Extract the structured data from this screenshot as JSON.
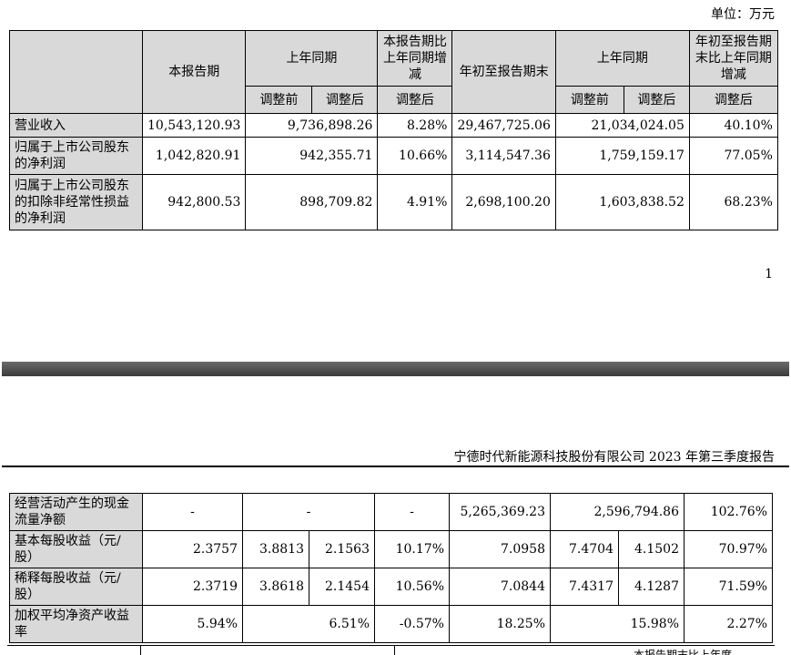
{
  "unit_label": "单位：万元",
  "page_number": "1",
  "report_title": "宁德时代新能源科技股份有限公司 2023 年第三季度报告",
  "headers": {
    "current": "本报告期",
    "prior_period": "上年同期",
    "change_vs_prior": "本报告期比上年同期增减",
    "ytd": "年初至报告期末",
    "prior_ytd": "上年同期",
    "ytd_change": "年初至报告期末比上年同期增减",
    "before_adj": "调整前",
    "after_adj": "调整后"
  },
  "rows_top": [
    {
      "label": "营业收入",
      "current": "10,543,120.93",
      "prior_merged": "9,736,898.26",
      "change": "8.28%",
      "ytd": "29,467,725.06",
      "prior_ytd_merged": "21,034,024.05",
      "ytd_change": "40.10%"
    },
    {
      "label": "归属于上市公司股东的净利润",
      "current": "1,042,820.91",
      "prior_merged": "942,355.71",
      "change": "10.66%",
      "ytd": "3,114,547.36",
      "prior_ytd_merged": "1,759,159.17",
      "ytd_change": "77.05%"
    },
    {
      "label": "归属于上市公司股东的扣除非经常性损益的净利润",
      "current": "942,800.53",
      "prior_merged": "898,709.82",
      "change": "4.91%",
      "ytd": "2,698,100.20",
      "prior_ytd_merged": "1,603,838.52",
      "ytd_change": "68.23%"
    }
  ],
  "rows_bottom": {
    "cashflow": {
      "label": "经营活动产生的现金流量净额",
      "current": "-",
      "prior_merged": "-",
      "change": "-",
      "ytd": "5,265,369.23",
      "prior_ytd_merged": "2,596,794.86",
      "ytd_change": "102.76%"
    },
    "basic_eps": {
      "label": "基本每股收益（元/股）",
      "current": "2.3757",
      "prior_before": "3.8813",
      "prior_after": "2.1563",
      "change": "10.17%",
      "ytd": "7.0958",
      "prior_ytd_before": "7.4704",
      "prior_ytd_after": "4.1502",
      "ytd_change": "70.97%"
    },
    "diluted_eps": {
      "label": "稀释每股收益（元/股）",
      "current": "2.3719",
      "prior_before": "3.8618",
      "prior_after": "2.1454",
      "change": "10.56%",
      "ytd": "7.0844",
      "prior_ytd_before": "7.4317",
      "prior_ytd_after": "4.1287",
      "ytd_change": "71.59%"
    },
    "roe": {
      "label": "加权平均净资产收益率",
      "current": "5.94%",
      "prior_merged": "6.51%",
      "change": "-0.57%",
      "ytd": "18.25%",
      "prior_ytd_merged": "15.98%",
      "ytd_change": "2.27%"
    }
  },
  "cut_off_text": "本报告期末比上年度"
}
